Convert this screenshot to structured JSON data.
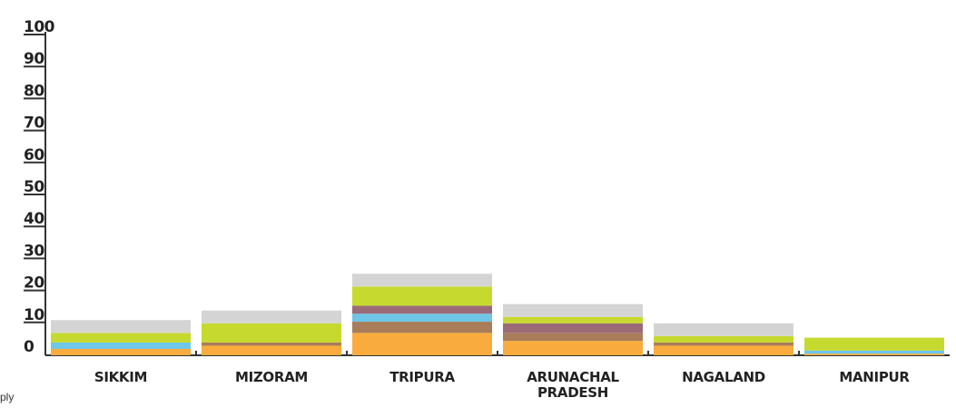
{
  "chart_data": {
    "type": "bar",
    "stacked": true,
    "title": "",
    "xlabel": "",
    "ylabel": "",
    "ylim": [
      0,
      100
    ],
    "yticks": [
      "0",
      "10",
      "20",
      "30",
      "40",
      "50",
      "60",
      "70",
      "80",
      "90",
      "100"
    ],
    "grid": false,
    "categories": [
      [
        "SIKKIM"
      ],
      [
        "MIZORAM"
      ],
      [
        "TRIPURA"
      ],
      [
        "ARUNACHAL",
        "PRADESH"
      ],
      [
        "NAGALAND"
      ],
      [
        "MANIPUR"
      ]
    ],
    "series": [
      {
        "color": "#F9AC3D",
        "values": [
          2.0,
          3.0,
          7.0,
          4.5,
          3.0,
          0.5
        ]
      },
      {
        "color": "#A97C5A",
        "values": [
          0.0,
          1.0,
          3.5,
          2.5,
          1.0,
          0.0
        ]
      },
      {
        "color": "#6FC6E6",
        "values": [
          2.0,
          0.0,
          2.5,
          0.0,
          0.0,
          1.0
        ]
      },
      {
        "color": "#9B6B78",
        "values": [
          0.0,
          0.0,
          2.5,
          3.0,
          0.0,
          0.0
        ]
      },
      {
        "color": "#C6D92E",
        "values": [
          3.0,
          6.0,
          6.0,
          2.0,
          2.0,
          4.0
        ]
      },
      {
        "color": "#D4D4D4",
        "values": [
          4.0,
          4.0,
          4.0,
          4.0,
          4.0,
          0.0
        ]
      }
    ]
  },
  "footnote": "ply"
}
